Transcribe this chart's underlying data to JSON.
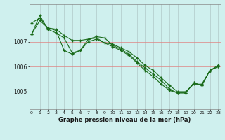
{
  "title": "Graphe pression niveau de la mer (hPa)",
  "background_color": "#cff0ee",
  "line_color": "#1a6b1a",
  "x_ticks": [
    0,
    1,
    2,
    3,
    4,
    5,
    6,
    7,
    8,
    9,
    10,
    11,
    12,
    13,
    14,
    15,
    16,
    17,
    18,
    19,
    20,
    21,
    22,
    23
  ],
  "ylim": [
    1004.3,
    1008.5
  ],
  "y_ticks": [
    1005,
    1006,
    1007
  ],
  "series1": [
    1007.3,
    1007.85,
    1007.55,
    1007.45,
    1006.65,
    1006.5,
    1006.65,
    1007.1,
    1007.2,
    1007.15,
    1006.85,
    1006.7,
    1006.5,
    1006.2,
    1005.95,
    1005.7,
    1005.45,
    1005.1,
    1004.95,
    1004.95,
    1005.35,
    1005.25,
    1005.85,
    1006.0
  ],
  "series2": [
    1007.3,
    1008.05,
    1007.5,
    1007.35,
    1007.15,
    1006.55,
    1006.65,
    1007.0,
    1007.1,
    1006.95,
    1006.8,
    1006.65,
    1006.45,
    1006.15,
    1005.85,
    1005.6,
    1005.3,
    1005.05,
    1004.95,
    1004.95,
    1005.35,
    1005.25,
    1005.85,
    1006.0
  ],
  "series3": [
    1007.75,
    1007.95,
    1007.55,
    1007.5,
    1007.25,
    1007.05,
    1007.05,
    1007.1,
    1007.15,
    1006.95,
    1006.9,
    1006.75,
    1006.6,
    1006.35,
    1006.05,
    1005.85,
    1005.55,
    1005.25,
    1005.0,
    1005.0,
    1005.3,
    1005.3,
    1005.85,
    1006.05
  ]
}
